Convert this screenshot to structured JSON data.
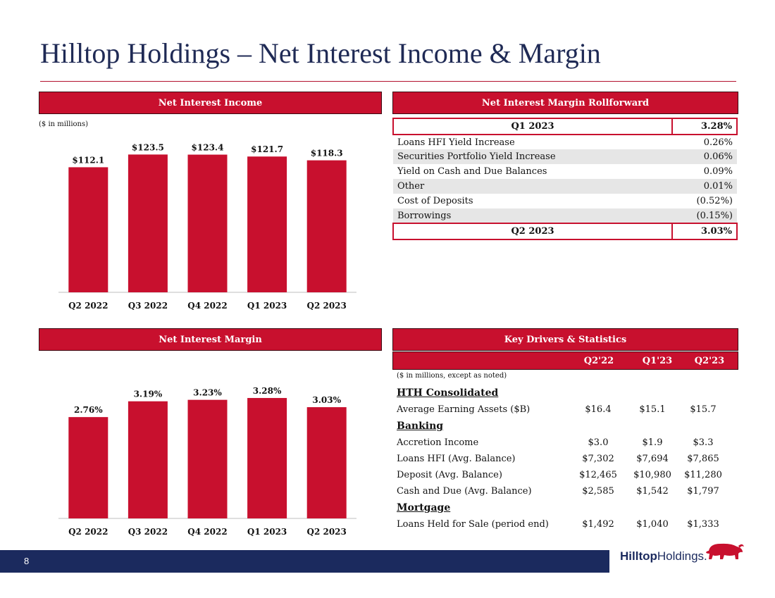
{
  "title": "Hilltop Holdings – Net Interest Income & Margin",
  "page_number": "8",
  "logo": {
    "bold": "Hilltop",
    "regular": "Holdings."
  },
  "colors": {
    "bar": "#c8102e",
    "navy": "#1b2a5e"
  },
  "nii_panel": {
    "header": "Net Interest Income",
    "note": "($ in millions)"
  },
  "nim_panel": {
    "header": "Net Interest Margin"
  },
  "chart_data": [
    {
      "type": "bar",
      "title": "Net Interest Income",
      "categories": [
        "Q2 2022",
        "Q3 2022",
        "Q4 2022",
        "Q1 2023",
        "Q2 2023"
      ],
      "values": [
        112.1,
        123.5,
        123.4,
        121.7,
        118.3
      ],
      "labels": [
        "$112.1",
        "$123.5",
        "$123.4",
        "$121.7",
        "$118.3"
      ],
      "ylim": [
        0,
        125
      ]
    },
    {
      "type": "bar",
      "title": "Net Interest Margin",
      "categories": [
        "Q2 2022",
        "Q3 2022",
        "Q4 2022",
        "Q1 2023",
        "Q2 2023"
      ],
      "values": [
        2.76,
        3.19,
        3.23,
        3.28,
        3.03
      ],
      "labels": [
        "2.76%",
        "3.19%",
        "3.23%",
        "3.28%",
        "3.03%"
      ],
      "ylim": [
        0,
        3.3
      ]
    }
  ],
  "rollforward": {
    "header": "Net Interest Margin Rollforward",
    "start": {
      "label": "Q1 2023",
      "value": "3.28%"
    },
    "rows": [
      {
        "label": "Loans HFI Yield Increase",
        "value": "0.26%"
      },
      {
        "label": "Securities Portfolio Yield Increase",
        "value": "0.06%"
      },
      {
        "label": "Yield on Cash and Due Balances",
        "value": "0.09%"
      },
      {
        "label": "Other",
        "value": "0.01%"
      },
      {
        "label": "Cost of Deposits",
        "value": "(0.52%)"
      },
      {
        "label": "Borrowings",
        "value": "(0.15%)"
      }
    ],
    "end": {
      "label": "Q2 2023",
      "value": "3.03%"
    }
  },
  "key_drivers": {
    "header": "Key Drivers & Statistics",
    "columns": [
      "Q2'22",
      "Q1'23",
      "Q2'23"
    ],
    "note": "($ in millions, except as noted)",
    "rows": [
      {
        "label": "HTH Consolidated",
        "section": true
      },
      {
        "label": "Average Earning Assets ($B)",
        "values": [
          "$16.4",
          "$15.1",
          "$15.7"
        ]
      },
      {
        "label": "Banking",
        "section": true
      },
      {
        "label": "Accretion Income",
        "values": [
          "$3.0",
          "$1.9",
          "$3.3"
        ]
      },
      {
        "label": "Loans HFI (Avg. Balance)",
        "values": [
          "$7,302",
          "$7,694",
          "$7,865"
        ]
      },
      {
        "label": "Deposit (Avg. Balance)",
        "values": [
          "$12,465",
          "$10,980",
          "$11,280"
        ]
      },
      {
        "label": "Cash and Due (Avg. Balance)",
        "values": [
          "$2,585",
          "$1,542",
          "$1,797"
        ]
      },
      {
        "label": "Mortgage",
        "section": true
      },
      {
        "label": "Loans Held for Sale (period end)",
        "values": [
          "$1,492",
          "$1,040",
          "$1,333"
        ]
      }
    ]
  }
}
